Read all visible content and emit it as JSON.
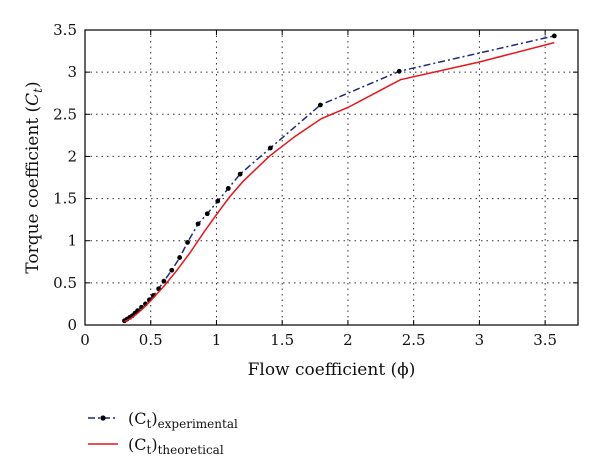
{
  "chart_data": {
    "type": "line",
    "xlabel": "Flow coefficient (ϕ)",
    "ylabel_main": "Torque coefficient (",
    "ylabel_sym": "C",
    "ylabel_sub": "t",
    "ylabel_end": ")",
    "xlim": [
      0,
      3.75
    ],
    "ylim": [
      0,
      3.5
    ],
    "xticks": [
      0,
      0.5,
      1,
      1.5,
      2,
      2.5,
      3,
      3.5
    ],
    "yticks": [
      0,
      0.5,
      1,
      1.5,
      2,
      2.5,
      3,
      3.5
    ],
    "xtick_labels": [
      "0",
      "0.5",
      "1",
      "1.5",
      "2",
      "2.5",
      "3",
      "3.5"
    ],
    "ytick_labels": [
      "0",
      "0.5",
      "1",
      "1.5",
      "2",
      "2.5",
      "3",
      "3.5"
    ],
    "grid": true,
    "legend_position": "bottom-left, below plot",
    "series": [
      {
        "name_main": "(C",
        "name_sub_t": "t",
        "name_close": ")",
        "name_sub": "experimental",
        "color": "#1f2a7a",
        "style": "dash-dot",
        "marker": "dot",
        "x": [
          0.3,
          0.32,
          0.34,
          0.36,
          0.38,
          0.4,
          0.43,
          0.46,
          0.49,
          0.52,
          0.56,
          0.6,
          0.66,
          0.72,
          0.78,
          0.86,
          0.93,
          1.01,
          1.09,
          1.18,
          1.41,
          1.79,
          2.39,
          3.57
        ],
        "y": [
          0.05,
          0.07,
          0.09,
          0.11,
          0.14,
          0.17,
          0.21,
          0.25,
          0.3,
          0.35,
          0.43,
          0.52,
          0.65,
          0.8,
          0.98,
          1.2,
          1.32,
          1.47,
          1.62,
          1.79,
          2.1,
          2.61,
          3.01,
          3.43
        ]
      },
      {
        "name_main": "(C",
        "name_sub_t": "t",
        "name_close": ")",
        "name_sub": "theoretical",
        "color": "#e8151b",
        "style": "solid",
        "marker": "none",
        "x": [
          0.3,
          0.35,
          0.4,
          0.45,
          0.5,
          0.6,
          0.7,
          0.8,
          0.9,
          1.0,
          1.1,
          1.2,
          1.4,
          1.6,
          1.8,
          2.0,
          2.4,
          3.0,
          3.57
        ],
        "y": [
          0.04,
          0.08,
          0.14,
          0.21,
          0.29,
          0.46,
          0.65,
          0.86,
          1.09,
          1.31,
          1.52,
          1.7,
          2.0,
          2.24,
          2.45,
          2.58,
          2.91,
          3.12,
          3.35
        ]
      }
    ]
  }
}
